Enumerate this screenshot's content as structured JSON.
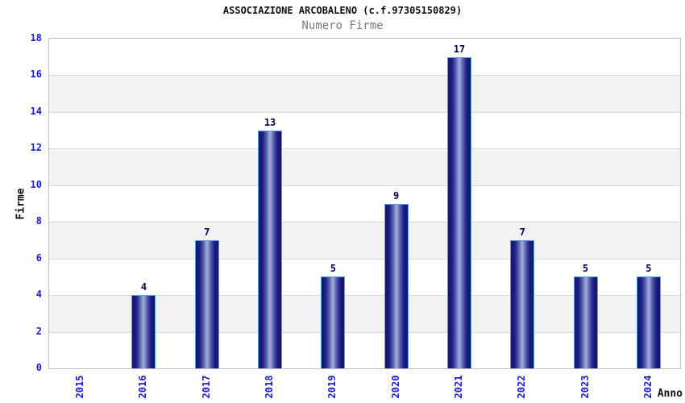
{
  "header": {
    "title": "ASSOCIAZIONE ARCOBALENO (c.f.97305150829)",
    "subtitle": "Numero Firme"
  },
  "chart_data": {
    "type": "bar",
    "title": "ASSOCIAZIONE ARCOBALENO (c.f.97305150829)",
    "subtitle": "Numero Firme",
    "categories": [
      "2015",
      "2016",
      "2017",
      "2018",
      "2019",
      "2020",
      "2021",
      "2022",
      "2023",
      "2024"
    ],
    "values": [
      0,
      4,
      7,
      13,
      5,
      9,
      17,
      7,
      5,
      5
    ],
    "xlabel": "Anno",
    "ylabel": "Firme",
    "ylim": [
      0,
      18
    ],
    "ytick_step": 2,
    "yticks": [
      0,
      2,
      4,
      6,
      8,
      10,
      12,
      14,
      16,
      18
    ],
    "grid": "alternating-horizontal-bands",
    "legend": "none",
    "colors": {
      "bar_edge_dark": "#13136b",
      "bar_center_light": "#a7afdc",
      "bar_border": "#58a2e8",
      "tick_label_blue": "#1a1ad6",
      "value_label_navy": "#00004d",
      "band_gray": "#f2f2f2",
      "gridline": "#d8d8d8",
      "plot_border": "#c0c0c0",
      "subtitle_gray": "#7a7a7a",
      "title_black": "#111111"
    }
  }
}
